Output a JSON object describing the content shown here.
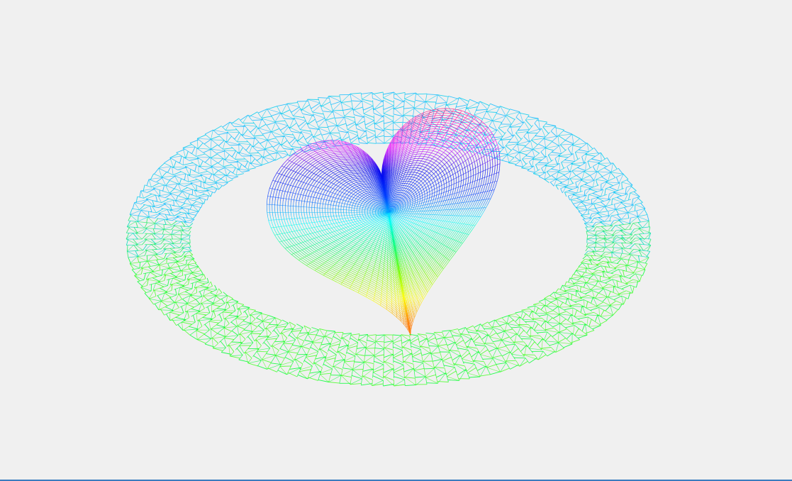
{
  "scene": {
    "background_color": "#f0f0f0",
    "bottom_border_color": "#3a7bbf",
    "ring": {
      "name": "torus-wireframe",
      "palette": [
        "#00ff33",
        "#22ee66",
        "#00ddbb",
        "#00ccee",
        "#11bbff",
        "#44ff22"
      ]
    },
    "heart": {
      "name": "heart-wireframe",
      "gradient_top_to_bottom": [
        "#ff0022",
        "#ff00aa",
        "#ee00ff",
        "#0000ee",
        "#0044ff",
        "#00ffff",
        "#00ff77",
        "#77ff00",
        "#ffff00",
        "#ff7700"
      ]
    }
  }
}
